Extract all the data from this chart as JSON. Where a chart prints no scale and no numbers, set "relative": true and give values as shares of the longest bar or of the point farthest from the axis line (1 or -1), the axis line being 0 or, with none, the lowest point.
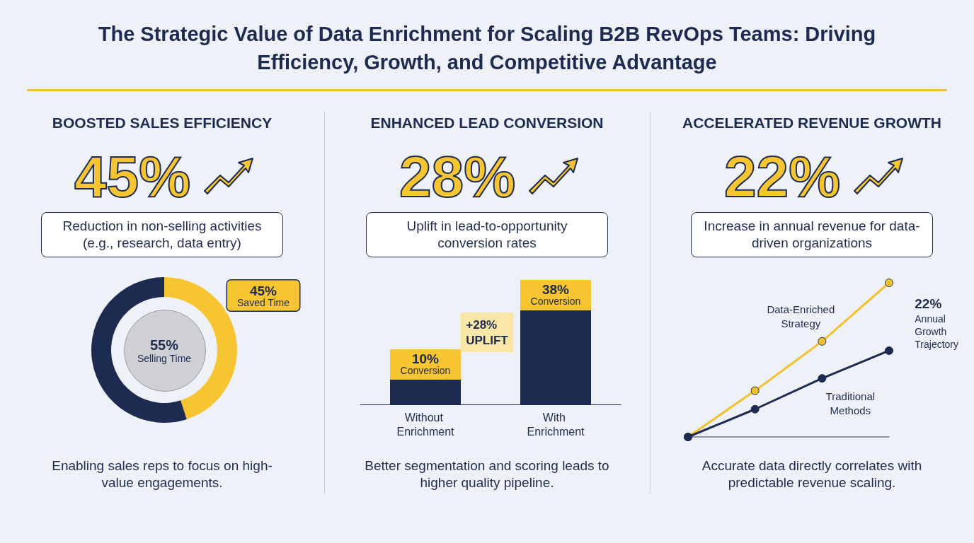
{
  "chart_data": [
    {
      "type": "other",
      "title": "The Strategic Value of Data Enrichment for Scaling B2B RevOps Teams: Driving Efficiency, Growth, and Competitive Advantage"
    },
    {
      "type": "donut",
      "title": "BOOSTED SALES EFFICIENCY",
      "categories": [
        "Saved Time",
        "Selling Time"
      ],
      "values": [
        45,
        55
      ],
      "colors": [
        "#f7c531",
        "#1c2b4f"
      ],
      "value_labels": [
        "45%",
        "55%"
      ],
      "annotations": [
        "45%",
        "Reduction in non-selling activities (e.g., research, data entry)",
        "Enabling sales reps to focus on high-value engagements."
      ]
    },
    {
      "type": "bar",
      "title": "ENHANCED LEAD CONVERSION",
      "categories": [
        "Without Enrichment",
        "With Enrichment"
      ],
      "values": [
        10,
        38
      ],
      "color": "#1c2b4f",
      "value_labels": [
        "10% Conversion",
        "38% Conversion"
      ],
      "annotations": [
        "28%",
        "Uplift in lead-to-opportunity conversion rates",
        "Better segmentation and scoring leads to higher quality pipeline.",
        "+28% UPLIFT"
      ]
    },
    {
      "type": "line",
      "title": "ACCELERATED REVENUE GROWTH",
      "relative": true,
      "categories": [
        null,
        null,
        null,
        null
      ],
      "marker": "circle",
      "series": [
        {
          "name": "Data-Enriched Strategy",
          "color": "#f2c12e",
          "values": [
            0,
            0.3,
            0.62,
            1
          ]
        },
        {
          "name": "Traditional Methods",
          "color": "#1c2b4f",
          "values": [
            0,
            0.18,
            0.38,
            0.56
          ]
        }
      ],
      "annotations": [
        "22%",
        "Increase in annual revenue for data-driven organizations",
        "Accurate data directly correlates with predictable revenue scaling.",
        "22% Annual Growth Trajectory"
      ]
    }
  ]
}
